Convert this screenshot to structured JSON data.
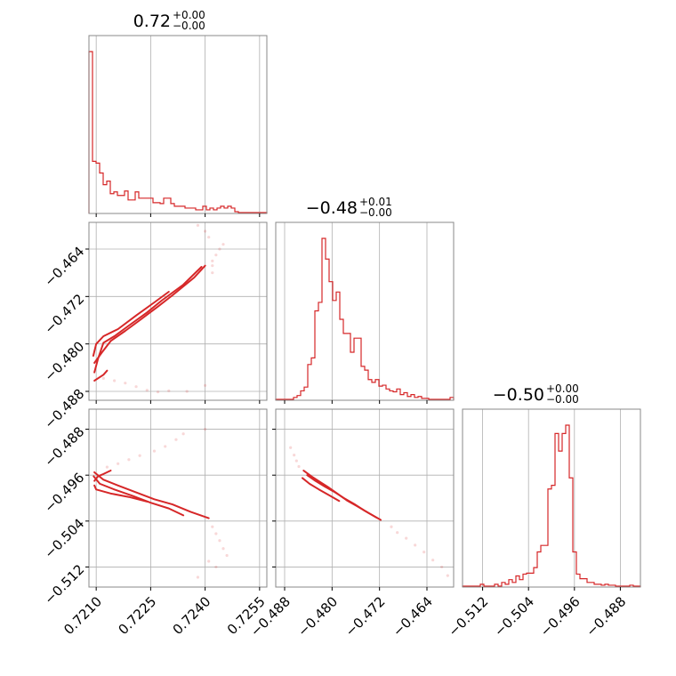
{
  "chart_data": {
    "type": "corner",
    "color": "#d62728",
    "grid": true,
    "parameters": [
      {
        "title_value": "0.72",
        "err_plus": "+0.00",
        "err_minus": "−0.00",
        "range": [
          0.7208,
          0.7257
        ],
        "ticks": [
          0.721,
          0.7225,
          0.724,
          0.7255
        ],
        "tick_labels": [
          "0.7210",
          "0.7225",
          "0.7240",
          "0.7255"
        ]
      },
      {
        "title_value": "−0.48",
        "err_plus": "+0.01",
        "err_minus": "−0.00",
        "range": [
          -0.4895,
          -0.4595
        ],
        "ticks": [
          -0.488,
          -0.48,
          -0.472,
          -0.464
        ],
        "tick_labels": [
          "−0.488",
          "−0.480",
          "−0.472",
          "−0.464"
        ]
      },
      {
        "title_value": "−0.50",
        "err_plus": "+0.00",
        "err_minus": "−0.00",
        "range": [
          -0.5155,
          -0.4845
        ],
        "ticks": [
          -0.512,
          -0.504,
          -0.496,
          -0.488
        ],
        "tick_labels": [
          "−0.512",
          "−0.504",
          "−0.496",
          "−0.488"
        ]
      }
    ],
    "histograms": [
      {
        "parameter": 0,
        "bin_edges": [
          0.7208,
          0.7257
        ],
        "counts": [
          180,
          58,
          56,
          45,
          32,
          36,
          22,
          24,
          20,
          20,
          25,
          15,
          15,
          24,
          17,
          17,
          17,
          17,
          12,
          12,
          11,
          17,
          17,
          11,
          8,
          8,
          8,
          6,
          6,
          6,
          4,
          4,
          8,
          4,
          6,
          4,
          6,
          8,
          6,
          8,
          6,
          2,
          1,
          1,
          1,
          1,
          1,
          1,
          1,
          1
        ]
      },
      {
        "parameter": 1,
        "bin_edges": [
          -0.4895,
          -0.4595
        ],
        "counts": [
          1,
          1,
          1,
          1,
          1,
          3,
          5,
          10,
          14,
          38,
          45,
          95,
          104,
          172,
          150,
          126,
          106,
          115,
          86,
          71,
          71,
          51,
          66,
          66,
          36,
          32,
          22,
          19,
          22,
          15,
          16,
          12,
          10,
          9,
          12,
          6,
          8,
          4,
          6,
          3,
          4,
          2,
          2,
          1,
          1,
          1,
          1,
          1,
          1,
          3
        ]
      },
      {
        "parameter": 2,
        "bin_edges": [
          -0.5155,
          -0.4845
        ],
        "counts": [
          1,
          1,
          1,
          1,
          1,
          3,
          1,
          1,
          1,
          3,
          1,
          5,
          3,
          8,
          5,
          12,
          8,
          14,
          15,
          15,
          21,
          38,
          45,
          45,
          106,
          110,
          166,
          147,
          166,
          175,
          118,
          38,
          14,
          9,
          9,
          5,
          5,
          3,
          3,
          2,
          3,
          2,
          2,
          1,
          1,
          1,
          1,
          2,
          1,
          1
        ]
      }
    ],
    "scatter_panels": [
      {
        "x_parameter": 0,
        "y_parameter": 1,
        "dense_paths": [
          [
            [
              0.72095,
              -0.4848
            ],
            [
              0.72105,
              -0.4825
            ],
            [
              0.7212,
              -0.4798
            ],
            [
              0.7215,
              -0.4787
            ],
            [
              0.7219,
              -0.4769
            ],
            [
              0.7224,
              -0.4747
            ],
            [
              0.7228,
              -0.4727
            ],
            [
              0.7234,
              -0.47
            ],
            [
              0.7239,
              -0.467
            ]
          ],
          [
            [
              0.72095,
              -0.4832
            ],
            [
              0.72115,
              -0.4815
            ],
            [
              0.7214,
              -0.4795
            ],
            [
              0.7218,
              -0.4778
            ],
            [
              0.7222,
              -0.476
            ],
            [
              0.7227,
              -0.4737
            ],
            [
              0.7231,
              -0.4718
            ],
            [
              0.7237,
              -0.4688
            ],
            [
              0.724,
              -0.4668
            ]
          ],
          [
            [
              0.72092,
              -0.482
            ],
            [
              0.721,
              -0.48
            ],
            [
              0.7212,
              -0.4787
            ],
            [
              0.7216,
              -0.4775
            ],
            [
              0.7221,
              -0.4752
            ],
            [
              0.7226,
              -0.473
            ],
            [
              0.723,
              -0.4712
            ]
          ],
          [
            [
              0.72095,
              -0.4862
            ],
            [
              0.72105,
              -0.4858
            ],
            [
              0.7212,
              -0.4852
            ],
            [
              0.7213,
              -0.4845
            ]
          ]
        ],
        "sparse_points": [
          [
            0.7212,
            -0.4858
          ],
          [
            0.7215,
            -0.4862
          ],
          [
            0.7218,
            -0.4866
          ],
          [
            0.7221,
            -0.4872
          ],
          [
            0.7224,
            -0.4878
          ],
          [
            0.7227,
            -0.4881
          ],
          [
            0.723,
            -0.4879
          ],
          [
            0.7235,
            -0.488
          ],
          [
            0.724,
            -0.487
          ],
          [
            0.7242,
            -0.4668
          ],
          [
            0.7242,
            -0.466
          ],
          [
            0.7243,
            -0.465
          ],
          [
            0.7244,
            -0.464
          ],
          [
            0.7245,
            -0.4632
          ],
          [
            0.7241,
            -0.462
          ],
          [
            0.724,
            -0.461
          ],
          [
            0.7238,
            -0.46
          ],
          [
            0.7242,
            -0.468
          ]
        ]
      },
      {
        "x_parameter": 0,
        "y_parameter": 2,
        "dense_paths": [
          [
            [
              0.72095,
              -0.4955
            ],
            [
              0.7212,
              -0.4968
            ],
            [
              0.7216,
              -0.4978
            ],
            [
              0.7221,
              -0.499
            ],
            [
              0.7226,
              -0.5002
            ],
            [
              0.7231,
              -0.5011
            ],
            [
              0.7236,
              -0.5024
            ],
            [
              0.7241,
              -0.5035
            ]
          ],
          [
            [
              0.72093,
              -0.4962
            ],
            [
              0.7211,
              -0.4975
            ],
            [
              0.7215,
              -0.4985
            ],
            [
              0.722,
              -0.4996
            ],
            [
              0.7225,
              -0.5008
            ],
            [
              0.723,
              -0.5018
            ],
            [
              0.7234,
              -0.503
            ]
          ],
          [
            [
              0.72095,
              -0.497
            ],
            [
              0.72105,
              -0.4962
            ],
            [
              0.7212,
              -0.4958
            ],
            [
              0.7214,
              -0.4952
            ]
          ],
          [
            [
              0.72095,
              -0.4978
            ],
            [
              0.721,
              -0.4985
            ],
            [
              0.7214,
              -0.4992
            ],
            [
              0.7219,
              -0.4998
            ],
            [
              0.7224,
              -0.5006
            ]
          ]
        ],
        "sparse_points": [
          [
            0.7213,
            -0.4946
          ],
          [
            0.7216,
            -0.494
          ],
          [
            0.7219,
            -0.4933
          ],
          [
            0.7222,
            -0.4926
          ],
          [
            0.7226,
            -0.4918
          ],
          [
            0.7229,
            -0.491
          ],
          [
            0.7232,
            -0.4898
          ],
          [
            0.7234,
            -0.4888
          ],
          [
            0.724,
            -0.488
          ],
          [
            0.7242,
            -0.505
          ],
          [
            0.7243,
            -0.5062
          ],
          [
            0.7244,
            -0.5074
          ],
          [
            0.7245,
            -0.5088
          ],
          [
            0.7246,
            -0.51
          ],
          [
            0.7241,
            -0.511
          ],
          [
            0.7243,
            -0.512
          ],
          [
            0.7238,
            -0.5138
          ]
        ]
      },
      {
        "x_parameter": 1,
        "y_parameter": 2,
        "dense_paths": [
          [
            [
              -0.4848,
              -0.4952
            ],
            [
              -0.4835,
              -0.4962
            ],
            [
              -0.482,
              -0.4972
            ],
            [
              -0.4805,
              -0.4982
            ],
            [
              -0.479,
              -0.4993
            ],
            [
              -0.4775,
              -0.5004
            ],
            [
              -0.4758,
              -0.5014
            ],
            [
              -0.474,
              -0.5025
            ],
            [
              -0.4718,
              -0.5038
            ]
          ],
          [
            [
              -0.4842,
              -0.496
            ],
            [
              -0.4828,
              -0.497
            ],
            [
              -0.4812,
              -0.498
            ],
            [
              -0.4795,
              -0.499
            ],
            [
              -0.478,
              -0.5
            ],
            [
              -0.4763,
              -0.501
            ],
            [
              -0.4745,
              -0.5022
            ],
            [
              -0.4725,
              -0.5034
            ]
          ],
          [
            [
              -0.485,
              -0.4965
            ],
            [
              -0.4838,
              -0.4975
            ],
            [
              -0.4822,
              -0.4985
            ],
            [
              -0.4805,
              -0.4995
            ],
            [
              -0.4788,
              -0.5005
            ]
          ]
        ],
        "sparse_points": [
          [
            -0.487,
            -0.4912
          ],
          [
            -0.4864,
            -0.4925
          ],
          [
            -0.486,
            -0.4935
          ],
          [
            -0.4856,
            -0.4945
          ],
          [
            -0.47,
            -0.505
          ],
          [
            -0.469,
            -0.506
          ],
          [
            -0.4675,
            -0.507
          ],
          [
            -0.466,
            -0.5082
          ],
          [
            -0.4645,
            -0.5094
          ],
          [
            -0.463,
            -0.5108
          ],
          [
            -0.4615,
            -0.512
          ],
          [
            -0.4605,
            -0.5135
          ]
        ]
      }
    ]
  }
}
